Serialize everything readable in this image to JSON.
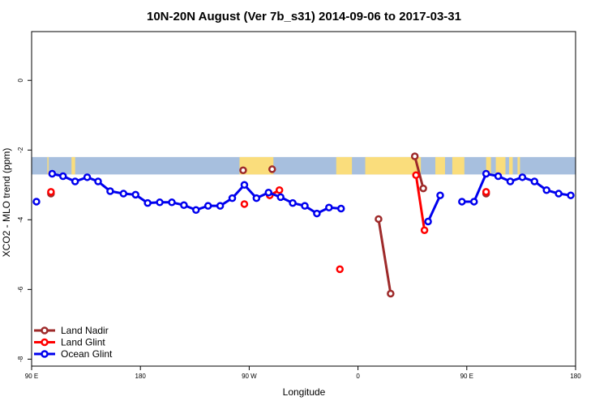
{
  "chart_data": {
    "type": "line",
    "title": "10N-20N August (Ver 7b_s31)   2014-09-06 to 2017-03-31",
    "xlabel": "Longitude",
    "ylabel": "XCO2 - MLO trend (ppm)",
    "xlim": [
      0,
      450
    ],
    "ylim": [
      -8.2,
      1.4
    ],
    "x_ticks": [
      {
        "v": 0,
        "label": "90 E"
      },
      {
        "v": 90,
        "label": "180"
      },
      {
        "v": 180,
        "label": "90 W"
      },
      {
        "v": 270,
        "label": "0"
      },
      {
        "v": 360,
        "label": "90 E"
      },
      {
        "v": 450,
        "label": "180"
      }
    ],
    "y_ticks": [
      {
        "v": 0,
        "label": "0"
      },
      {
        "v": -2,
        "label": "-2"
      },
      {
        "v": -4,
        "label": "-4"
      },
      {
        "v": -6,
        "label": "-6"
      },
      {
        "v": -8,
        "label": "-8"
      }
    ],
    "map_band": {
      "y_top": -2.2,
      "y_bottom": -2.7,
      "ocean_color": "#a7bfde",
      "land_color": "#fadd7c",
      "land_segments": [
        [
          13,
          14
        ],
        [
          33,
          36
        ],
        [
          172,
          200
        ],
        [
          252,
          265
        ],
        [
          276,
          322
        ],
        [
          334,
          342
        ],
        [
          348,
          358
        ],
        [
          376,
          380
        ],
        [
          384,
          392
        ],
        [
          395,
          398
        ],
        [
          402,
          404
        ]
      ]
    },
    "series": [
      {
        "name": "Land Nadir",
        "color": "#9e2a2a",
        "points": [
          [
            16,
            -3.25
          ],
          [
            175,
            -2.58
          ],
          [
            199,
            -2.55
          ],
          [
            287,
            -3.98
          ],
          [
            297,
            -6.12
          ],
          [
            317,
            -2.18
          ],
          [
            324,
            -3.1
          ],
          [
            376,
            -3.25
          ]
        ]
      },
      {
        "name": "Land Glint",
        "color": "#ff0000",
        "points": [
          [
            16,
            -3.2
          ],
          [
            176,
            -3.55
          ],
          [
            197,
            -3.3
          ],
          [
            205,
            -3.15
          ],
          [
            255,
            -5.42
          ],
          [
            318,
            -2.72
          ],
          [
            325,
            -4.3
          ],
          [
            376,
            -3.2
          ]
        ]
      },
      {
        "name": "Ocean Glint",
        "color": "#0000ee",
        "points": [
          [
            4,
            -3.48
          ],
          [
            17,
            -2.68
          ],
          [
            26,
            -2.75
          ],
          [
            36,
            -2.9
          ],
          [
            46,
            -2.78
          ],
          [
            55,
            -2.9
          ],
          [
            65,
            -3.18
          ],
          [
            76,
            -3.25
          ],
          [
            86,
            -3.28
          ],
          [
            96,
            -3.52
          ],
          [
            106,
            -3.5
          ],
          [
            116,
            -3.5
          ],
          [
            126,
            -3.58
          ],
          [
            136,
            -3.72
          ],
          [
            146,
            -3.6
          ],
          [
            156,
            -3.6
          ],
          [
            166,
            -3.38
          ],
          [
            176,
            -3.0
          ],
          [
            186,
            -3.38
          ],
          [
            196,
            -3.22
          ],
          [
            206,
            -3.35
          ],
          [
            216,
            -3.52
          ],
          [
            226,
            -3.6
          ],
          [
            236,
            -3.82
          ],
          [
            246,
            -3.65
          ],
          [
            256,
            -3.68
          ],
          [
            328,
            -4.05
          ],
          [
            338,
            -3.3
          ],
          [
            356,
            -3.48
          ],
          [
            366,
            -3.48
          ],
          [
            376,
            -2.68
          ],
          [
            386,
            -2.75
          ],
          [
            396,
            -2.9
          ],
          [
            406,
            -2.78
          ],
          [
            416,
            -2.9
          ],
          [
            426,
            -3.15
          ],
          [
            436,
            -3.25
          ],
          [
            446,
            -3.3
          ]
        ]
      }
    ],
    "legend": {
      "position": "bottom-left",
      "entries": [
        "Land Nadir",
        "Land Glint",
        "Ocean Glint"
      ]
    }
  }
}
